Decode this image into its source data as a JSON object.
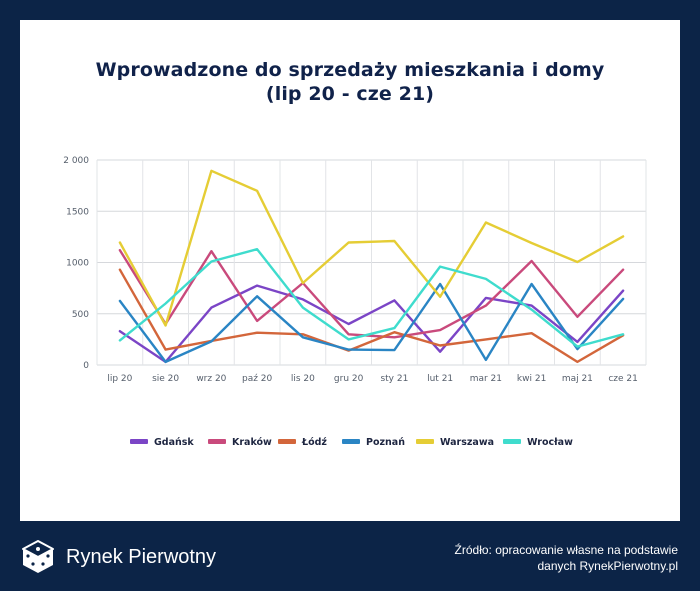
{
  "chart_data": {
    "type": "line",
    "title_line1": "Wprowadzone do sprzedaży mieszkania i domy",
    "title_line2": "(lip 20 - cze 21)",
    "categories": [
      "lip 20",
      "sie 20",
      "wrz 20",
      "paź 20",
      "lis 20",
      "gru 20",
      "sty 21",
      "lut 21",
      "mar 21",
      "kwi 21",
      "maj 21",
      "cze 21"
    ],
    "y_ticks": [
      {
        "value": 0,
        "label": "0"
      },
      {
        "value": 500,
        "label": "500"
      },
      {
        "value": 1000,
        "label": "1000"
      },
      {
        "value": 1500,
        "label": "1500"
      },
      {
        "value": 2000,
        "label": "2 000"
      }
    ],
    "ylim": [
      0,
      2000
    ],
    "grid": true,
    "legend_position": "bottom",
    "series": [
      {
        "name": "Gdańsk",
        "color": "#7b45c6",
        "values": [
          330,
          30,
          560,
          775,
          640,
          400,
          630,
          130,
          655,
          580,
          225,
          725
        ]
      },
      {
        "name": "Kraków",
        "color": "#c94a7c",
        "values": [
          1120,
          400,
          1110,
          430,
          800,
          300,
          270,
          340,
          580,
          1015,
          470,
          930
        ]
      },
      {
        "name": "Łódź",
        "color": "#d3663b",
        "values": [
          930,
          150,
          235,
          315,
          300,
          140,
          320,
          190,
          250,
          310,
          30,
          290
        ]
      },
      {
        "name": "Poznań",
        "color": "#2a85c4",
        "values": [
          625,
          30,
          230,
          670,
          270,
          150,
          145,
          790,
          50,
          790,
          155,
          645
        ]
      },
      {
        "name": "Warszawa",
        "color": "#e5cd35",
        "values": [
          1195,
          385,
          1895,
          1700,
          800,
          1195,
          1210,
          665,
          1390,
          1190,
          1005,
          1255
        ]
      },
      {
        "name": "Wrocław",
        "color": "#3fdccd",
        "values": [
          240,
          600,
          1010,
          1130,
          560,
          250,
          360,
          960,
          840,
          540,
          180,
          300
        ]
      }
    ]
  },
  "brand": {
    "name": "Rynek Pierwotny"
  },
  "source": {
    "line1": "Źródło: opracowanie własne na podstawie",
    "line2": "danych RynekPierwotny.pl"
  }
}
